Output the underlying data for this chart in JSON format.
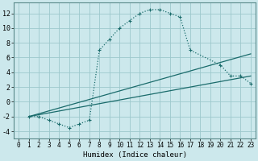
{
  "xlabel": "Humidex (Indice chaleur)",
  "bg_color": "#cce8ec",
  "grid_color": "#9dc8cc",
  "line_color": "#1a6b6b",
  "xlim": [
    -0.5,
    23.5
  ],
  "ylim": [
    -5,
    13.5
  ],
  "xticks": [
    0,
    1,
    2,
    3,
    4,
    5,
    6,
    7,
    8,
    9,
    10,
    11,
    12,
    13,
    14,
    15,
    16,
    17,
    18,
    19,
    20,
    21,
    22,
    23
  ],
  "yticks": [
    -4,
    -2,
    0,
    2,
    4,
    6,
    8,
    10,
    12
  ],
  "curve_x": [
    1,
    2,
    3,
    4,
    5,
    6,
    7,
    8,
    9,
    10,
    11,
    12,
    13,
    14,
    15,
    16,
    17,
    20,
    21,
    22,
    23
  ],
  "curve_y": [
    -2,
    -2,
    -2.5,
    -3,
    -3.5,
    -3,
    -2.5,
    7,
    8.5,
    10,
    11,
    12,
    12.5,
    12.5,
    12,
    11.5,
    7,
    5,
    3.5,
    3.5,
    2.5
  ],
  "line2_x": [
    1,
    23
  ],
  "line2_y": [
    -2.0,
    6.5
  ],
  "line3_x": [
    1,
    23
  ],
  "line3_y": [
    -2.0,
    3.5
  ],
  "tick_fontsize": 5.5,
  "xlabel_fontsize": 6.5
}
